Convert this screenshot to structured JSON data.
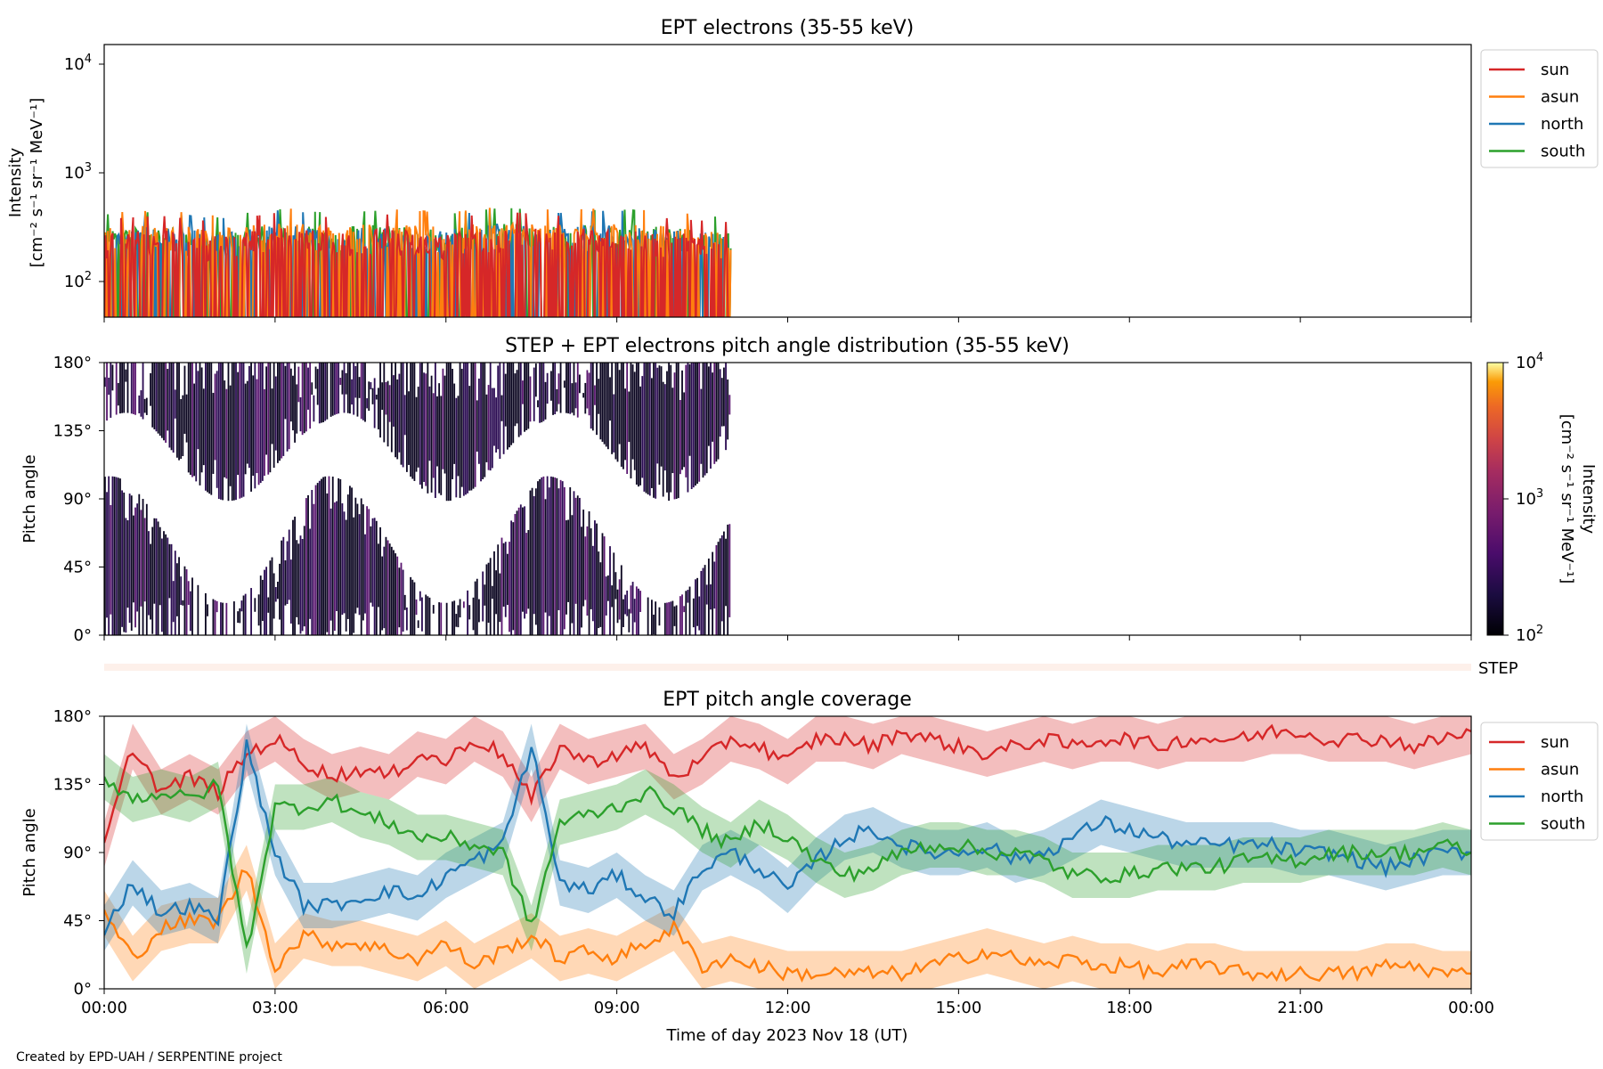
{
  "credit": "Created by EPD-UAH / SERPENTINE project",
  "xlabel": "Time of day 2023 Nov 18 (UT)",
  "x_ticks": [
    "00:00",
    "03:00",
    "06:00",
    "09:00",
    "12:00",
    "15:00",
    "18:00",
    "21:00",
    "00:00"
  ],
  "legend_entries": [
    {
      "name": "sun",
      "color": "#d62728"
    },
    {
      "name": "asun",
      "color": "#ff7f0e"
    },
    {
      "name": "north",
      "color": "#1f77b4"
    },
    {
      "name": "south",
      "color": "#2ca02c"
    }
  ],
  "panel1": {
    "title": "EPT electrons (35-55 keV)",
    "ylabel_line1": "Intensity",
    "ylabel_line2": "[cm⁻² s⁻¹ sr⁻¹ MeV⁻¹]",
    "y_ticks": [
      {
        "base": "10",
        "exp": "4"
      },
      {
        "base": "10",
        "exp": "3"
      },
      {
        "base": "10",
        "exp": "2"
      }
    ]
  },
  "panel2": {
    "title": "STEP + EPT electrons pitch angle distribution (35-55 keV)",
    "ylabel": "Pitch angle",
    "y_ticks": [
      "180°",
      "135°",
      "90°",
      "45°",
      "0°"
    ],
    "colorbar_label_line1": "Intensity",
    "colorbar_label_line2": "[cm⁻² s⁻¹ sr⁻¹ MeV⁻¹]",
    "colorbar_ticks": [
      {
        "base": "10",
        "exp": "4"
      },
      {
        "base": "10",
        "exp": "3"
      },
      {
        "base": "10",
        "exp": "2"
      }
    ]
  },
  "step_strip": {
    "label": "STEP"
  },
  "panel3": {
    "title": "EPT pitch angle coverage",
    "ylabel": "Pitch angle",
    "y_ticks": [
      "180°",
      "135°",
      "90°",
      "45°",
      "0°"
    ]
  },
  "chart_data": [
    {
      "type": "line",
      "title": "EPT electrons (35-55 keV)",
      "xlabel": "",
      "ylabel": "Intensity [cm⁻² s⁻¹ sr⁻¹ MeV⁻¹]",
      "y_scale": "log",
      "ylim": [
        50,
        15000
      ],
      "xlim": [
        "00:00",
        "24:00"
      ],
      "data_coverage": [
        "00:00",
        "11:00"
      ],
      "legend": "outside-right",
      "series": [
        {
          "name": "sun",
          "x": [
            "00:00",
            "01:00",
            "02:00",
            "03:00",
            "04:00",
            "05:00",
            "06:00",
            "07:00",
            "08:00",
            "09:00",
            "10:00",
            "11:00"
          ],
          "values": [
            150,
            160,
            140,
            170,
            155,
            165,
            150,
            175,
            160,
            170,
            150,
            140
          ]
        },
        {
          "name": "asun",
          "x": [
            "00:00",
            "01:00",
            "02:00",
            "03:00",
            "04:00",
            "05:00",
            "06:00",
            "07:00",
            "08:00",
            "09:00",
            "10:00",
            "11:00"
          ],
          "values": [
            170,
            180,
            160,
            190,
            175,
            185,
            170,
            195,
            180,
            190,
            170,
            160
          ]
        },
        {
          "name": "north",
          "x": [
            "00:00",
            "01:00",
            "02:00",
            "03:00",
            "04:00",
            "05:00",
            "06:00",
            "07:00",
            "08:00",
            "09:00",
            "10:00",
            "11:00"
          ],
          "values": [
            160,
            170,
            150,
            180,
            165,
            175,
            160,
            185,
            170,
            180,
            160,
            150
          ]
        },
        {
          "name": "south",
          "x": [
            "00:00",
            "01:00",
            "02:00",
            "03:00",
            "04:00",
            "05:00",
            "06:00",
            "07:00",
            "08:00",
            "09:00",
            "10:00",
            "11:00"
          ],
          "values": [
            165,
            175,
            155,
            185,
            170,
            180,
            165,
            190,
            175,
            185,
            165,
            155
          ]
        }
      ]
    },
    {
      "type": "heatmap",
      "title": "STEP + EPT electrons pitch angle distribution (35-55 keV)",
      "ylabel": "Pitch angle",
      "ylim": [
        0,
        180
      ],
      "xlim": [
        "00:00",
        "24:00"
      ],
      "data_coverage": [
        "00:00",
        "11:00"
      ],
      "colorbar": {
        "label": "Intensity [cm⁻² s⁻¹ sr⁻¹ MeV⁻¹]",
        "scale": "log",
        "range": [
          100,
          10000
        ],
        "colormap": "inferno"
      }
    },
    {
      "type": "line",
      "title": "EPT pitch angle coverage",
      "xlabel": "Time of day 2023 Nov 18 (UT)",
      "ylabel": "Pitch angle",
      "ylim": [
        0,
        180
      ],
      "xlim": [
        "00:00",
        "24:00"
      ],
      "legend": "outside-right",
      "band_halfwidth_deg": 15,
      "series": [
        {
          "name": "sun",
          "x": [
            "00:00",
            "00:30",
            "01:00",
            "01:30",
            "02:00",
            "02:30",
            "03:00",
            "03:30",
            "04:00",
            "04:30",
            "05:00",
            "05:30",
            "06:00",
            "06:30",
            "07:00",
            "07:30",
            "08:00",
            "08:30",
            "09:00",
            "09:30",
            "10:00",
            "10:30",
            "11:00",
            "11:30",
            "12:00",
            "12:30",
            "13:00",
            "13:30",
            "14:00",
            "14:30",
            "15:00",
            "15:30",
            "16:00",
            "16:30",
            "17:00",
            "17:30",
            "18:00",
            "18:30",
            "19:00",
            "19:30",
            "20:00",
            "20:30",
            "21:00",
            "21:30",
            "22:00",
            "22:30",
            "23:00",
            "23:30",
            "24:00"
          ],
          "values": [
            95,
            160,
            130,
            140,
            130,
            155,
            165,
            150,
            140,
            145,
            140,
            155,
            150,
            165,
            155,
            125,
            160,
            150,
            155,
            160,
            140,
            150,
            165,
            160,
            150,
            165,
            165,
            160,
            170,
            165,
            160,
            155,
            160,
            165,
            160,
            165,
            165,
            160,
            165,
            165,
            165,
            170,
            170,
            165,
            165,
            165,
            160,
            165,
            170
          ]
        },
        {
          "name": "asun",
          "x": [
            "00:00",
            "00:30",
            "01:00",
            "01:30",
            "02:00",
            "02:30",
            "03:00",
            "03:30",
            "04:00",
            "04:30",
            "05:00",
            "05:30",
            "06:00",
            "06:30",
            "07:00",
            "07:30",
            "08:00",
            "08:30",
            "09:00",
            "09:30",
            "10:00",
            "10:30",
            "11:00",
            "11:30",
            "12:00",
            "12:30",
            "13:00",
            "13:30",
            "14:00",
            "14:30",
            "15:00",
            "15:30",
            "16:00",
            "16:30",
            "17:00",
            "17:30",
            "18:00",
            "18:30",
            "19:00",
            "19:30",
            "20:00",
            "20:30",
            "21:00",
            "21:30",
            "22:00",
            "22:30",
            "23:00",
            "23:30",
            "24:00"
          ],
          "values": [
            50,
            20,
            40,
            45,
            45,
            80,
            15,
            35,
            30,
            30,
            25,
            20,
            30,
            15,
            25,
            35,
            20,
            25,
            20,
            30,
            40,
            15,
            20,
            15,
            10,
            10,
            10,
            10,
            10,
            15,
            20,
            25,
            20,
            15,
            20,
            15,
            15,
            10,
            15,
            15,
            10,
            10,
            10,
            10,
            10,
            15,
            15,
            10,
            10
          ]
        },
        {
          "name": "north",
          "x": [
            "00:00",
            "00:30",
            "01:00",
            "01:30",
            "02:00",
            "02:30",
            "03:00",
            "03:30",
            "04:00",
            "04:30",
            "05:00",
            "05:30",
            "06:00",
            "06:30",
            "07:00",
            "07:30",
            "08:00",
            "08:30",
            "09:00",
            "09:30",
            "10:00",
            "10:30",
            "11:00",
            "11:30",
            "12:00",
            "12:30",
            "13:00",
            "13:30",
            "14:00",
            "14:30",
            "15:00",
            "15:30",
            "16:00",
            "16:30",
            "17:00",
            "17:30",
            "18:00",
            "18:30",
            "19:00",
            "19:30",
            "20:00",
            "20:30",
            "21:00",
            "21:30",
            "22:00",
            "22:30",
            "23:00",
            "23:30",
            "24:00"
          ],
          "values": [
            40,
            70,
            50,
            55,
            45,
            160,
            90,
            55,
            55,
            60,
            65,
            60,
            75,
            85,
            95,
            160,
            70,
            65,
            75,
            60,
            50,
            80,
            90,
            80,
            65,
            85,
            100,
            105,
            95,
            90,
            90,
            95,
            85,
            90,
            100,
            110,
            105,
            100,
            95,
            95,
            95,
            95,
            90,
            90,
            85,
            80,
            85,
            90,
            90
          ]
        },
        {
          "name": "south",
          "x": [
            "00:00",
            "00:30",
            "01:00",
            "01:30",
            "02:00",
            "02:30",
            "03:00",
            "03:30",
            "04:00",
            "04:30",
            "05:00",
            "05:30",
            "06:00",
            "06:30",
            "07:00",
            "07:30",
            "08:00",
            "08:30",
            "09:00",
            "09:30",
            "10:00",
            "10:30",
            "11:00",
            "11:30",
            "12:00",
            "12:30",
            "13:00",
            "13:30",
            "14:00",
            "14:30",
            "15:00",
            "15:30",
            "16:00",
            "16:30",
            "17:00",
            "17:30",
            "18:00",
            "18:30",
            "19:00",
            "19:30",
            "20:00",
            "20:30",
            "21:00",
            "21:30",
            "22:00",
            "22:30",
            "23:00",
            "23:30",
            "24:00"
          ],
          "values": [
            140,
            125,
            130,
            125,
            135,
            25,
            120,
            120,
            125,
            115,
            110,
            100,
            100,
            95,
            90,
            40,
            110,
            115,
            120,
            130,
            120,
            105,
            95,
            110,
            100,
            85,
            75,
            80,
            90,
            95,
            95,
            90,
            90,
            85,
            75,
            75,
            75,
            80,
            80,
            80,
            85,
            85,
            85,
            90,
            90,
            90,
            90,
            95,
            90
          ]
        }
      ]
    }
  ]
}
